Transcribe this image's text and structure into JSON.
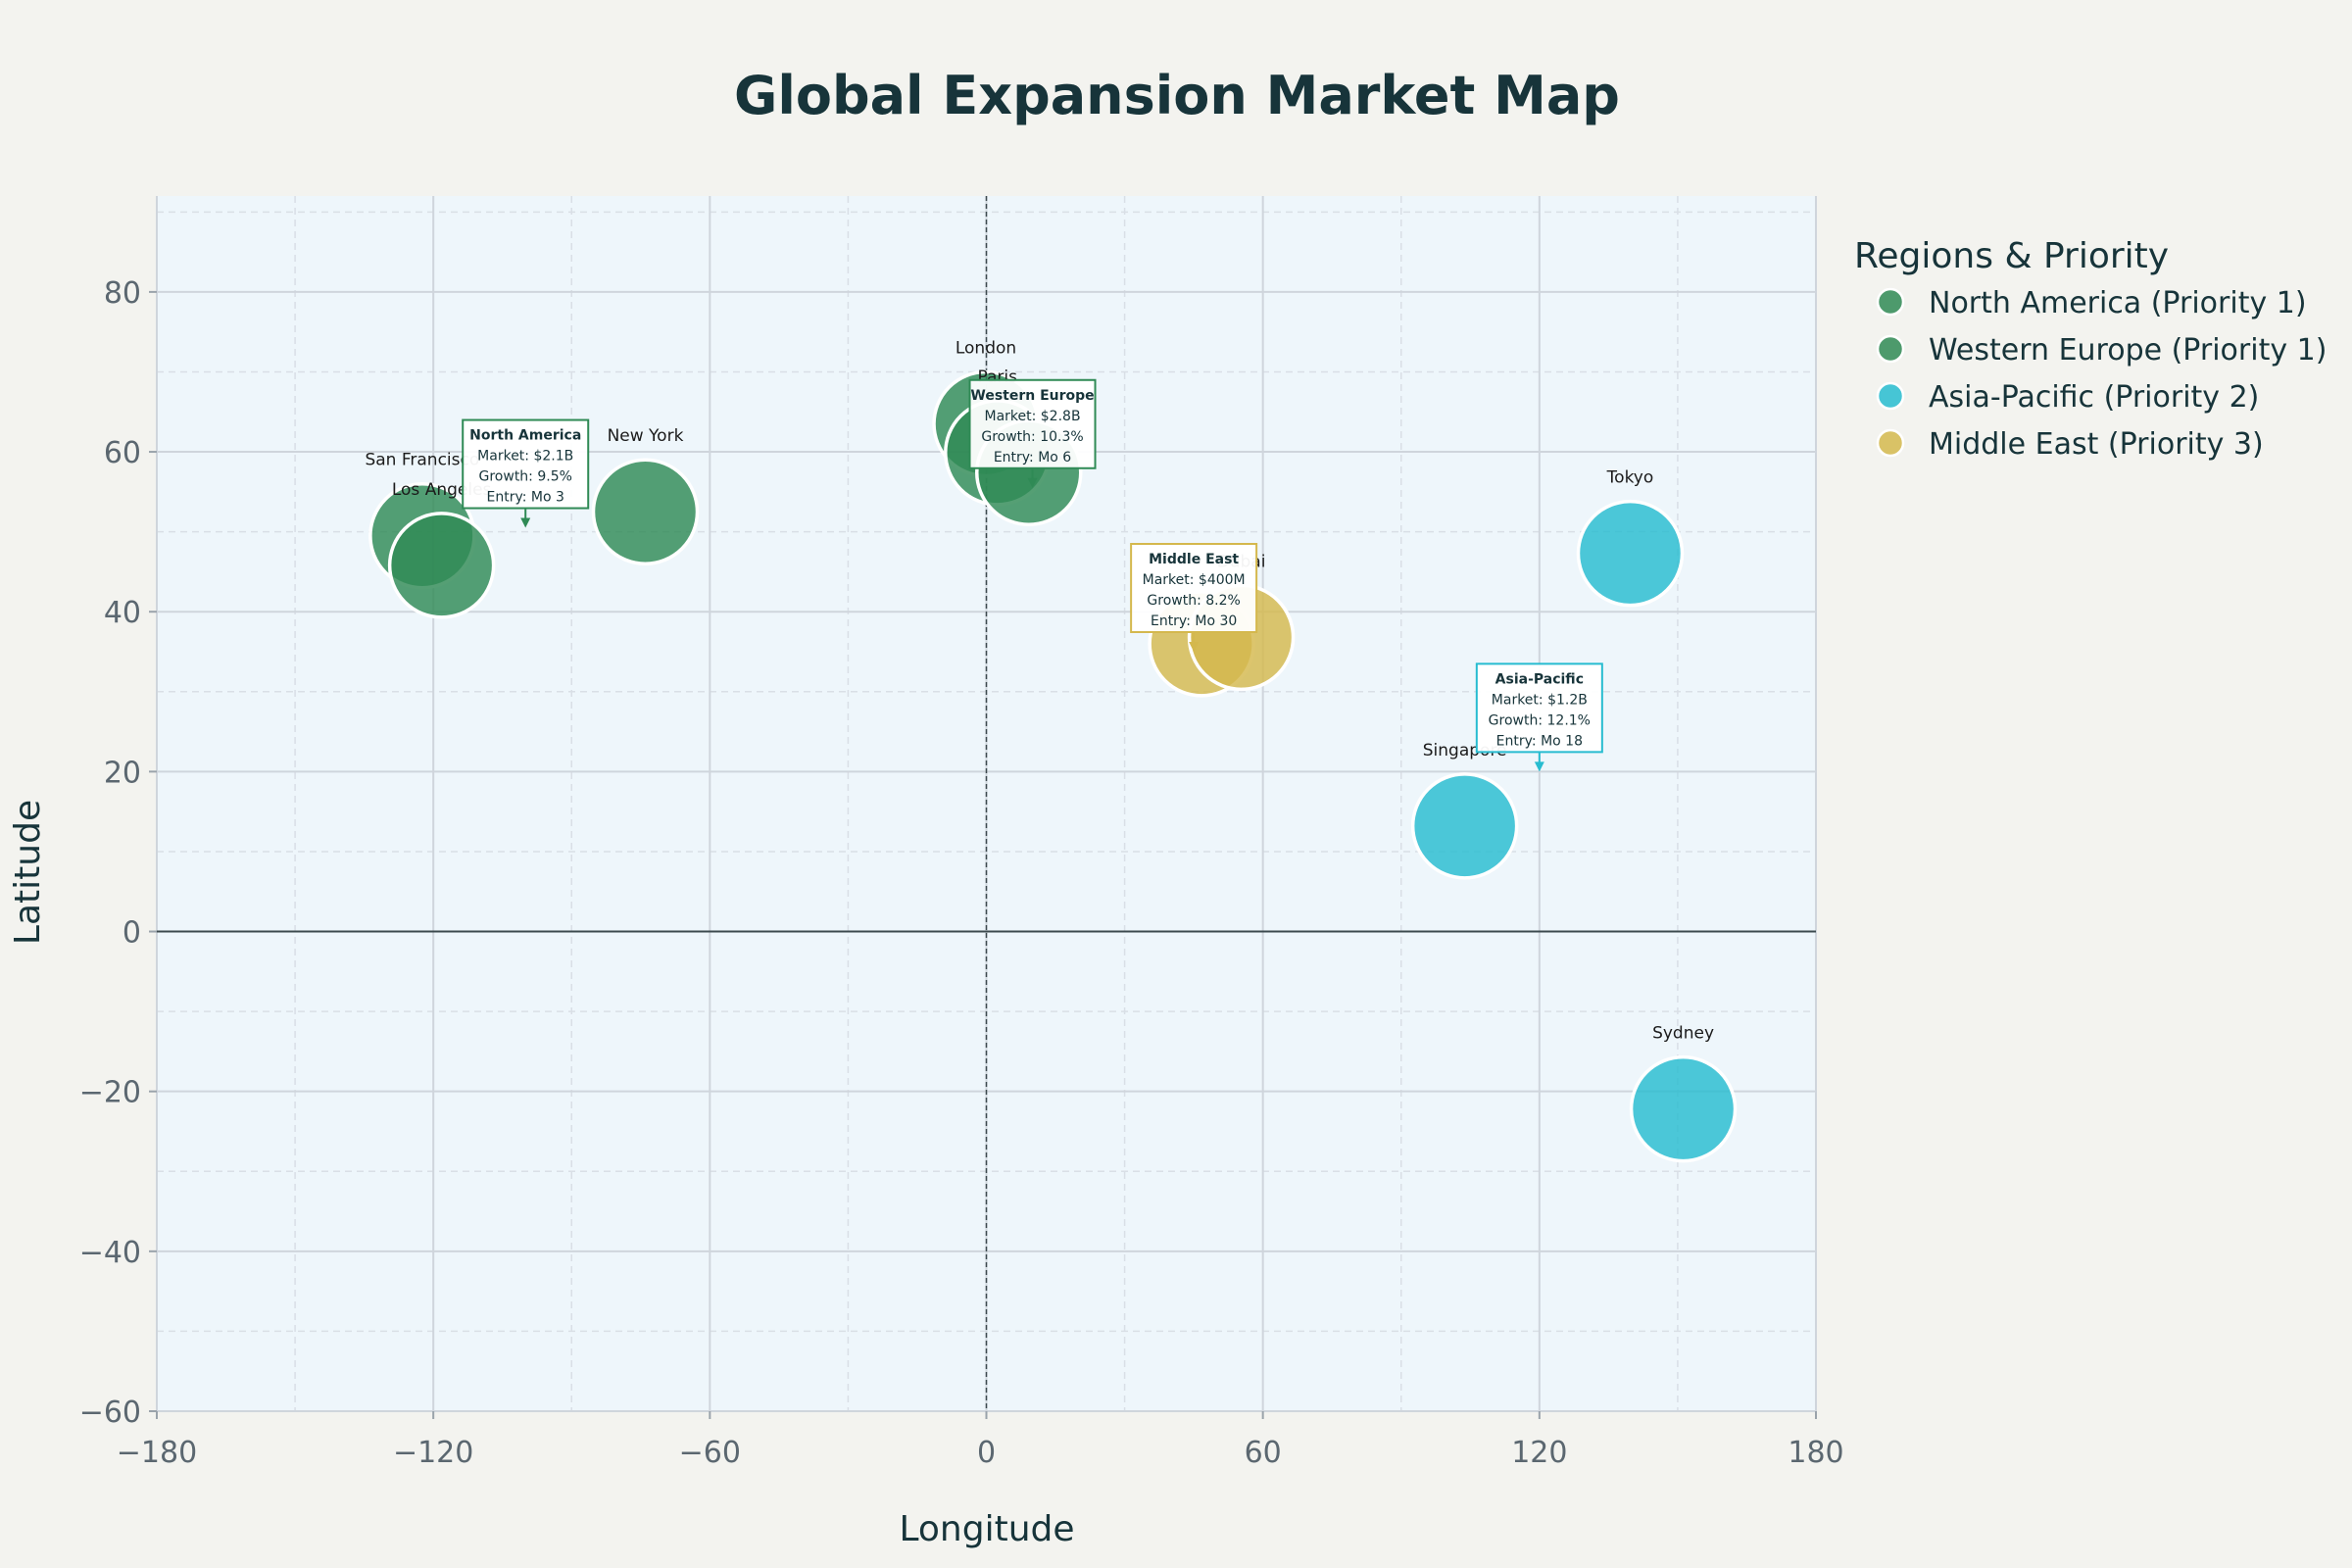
{
  "chart_data": {
    "type": "scatter",
    "title": "Global Expansion Market Map",
    "xlabel": "Longitude",
    "ylabel": "Latitude",
    "xlim": [
      -180,
      180
    ],
    "ylim": [
      -60,
      92
    ],
    "x_ticks": [
      -180,
      -120,
      -60,
      0,
      60,
      120,
      180
    ],
    "y_ticks": [
      -60,
      -40,
      -20,
      0,
      20,
      40,
      60,
      80
    ],
    "grid": true,
    "legend_title": "Regions & Priority",
    "legend_position": "right",
    "series": [
      {
        "name": "North America (Priority 1)",
        "color": "#2f8a55",
        "points": [
          {
            "label": "San Francisco",
            "x": -122.4,
            "y": 49.5
          },
          {
            "label": "Los Angeles",
            "x": -118.2,
            "y": 45.8
          },
          {
            "label": "New York",
            "x": -74.0,
            "y": 52.5
          }
        ]
      },
      {
        "name": "Western Europe (Priority 1)",
        "color": "#2f8a55",
        "points": [
          {
            "label": "London",
            "x": -0.1,
            "y": 63.5
          },
          {
            "label": "Paris",
            "x": 2.4,
            "y": 59.9
          },
          {
            "label": "",
            "x": 9.2,
            "y": 57.4
          }
        ]
      },
      {
        "name": "Asia-Pacific (Priority 2)",
        "color": "#27bcd0",
        "points": [
          {
            "label": "Tokyo",
            "x": 139.7,
            "y": 47.3
          },
          {
            "label": "Singapore",
            "x": 103.8,
            "y": 13.2
          },
          {
            "label": "Sydney",
            "x": 151.2,
            "y": -22.2
          }
        ]
      },
      {
        "name": "Middle East (Priority 3)",
        "color": "#d4b84d",
        "points": [
          {
            "label": "",
            "x": 46.7,
            "y": 36.0
          },
          {
            "label": "Dubai",
            "x": 55.3,
            "y": 36.8
          }
        ]
      }
    ],
    "annotations": [
      {
        "region": "North America",
        "color": "#2f8a55",
        "lines": [
          "North America",
          "Market: $2.1B",
          "Growth: 9.5%",
          "Entry: Mo 3"
        ],
        "x": -100,
        "y": 50.5
      },
      {
        "region": "Western Europe",
        "color": "#2f8a55",
        "lines": [
          "Western Europe",
          "Market: $2.8B",
          "Growth: 10.3%",
          "Entry: Mo 6"
        ],
        "x": 10,
        "y": 55.5
      },
      {
        "region": "Middle East",
        "color": "#d4b84d",
        "lines": [
          "Middle East",
          "Market: $400M",
          "Growth: 8.2%",
          "Entry: Mo 30"
        ],
        "x": 45,
        "y": 35
      },
      {
        "region": "Asia-Pacific",
        "color": "#27bcd0",
        "lines": [
          "Asia-Pacific",
          "Market: $1.2B",
          "Growth: 12.1%",
          "Entry: Mo 18"
        ],
        "x": 120,
        "y": 20
      }
    ]
  }
}
